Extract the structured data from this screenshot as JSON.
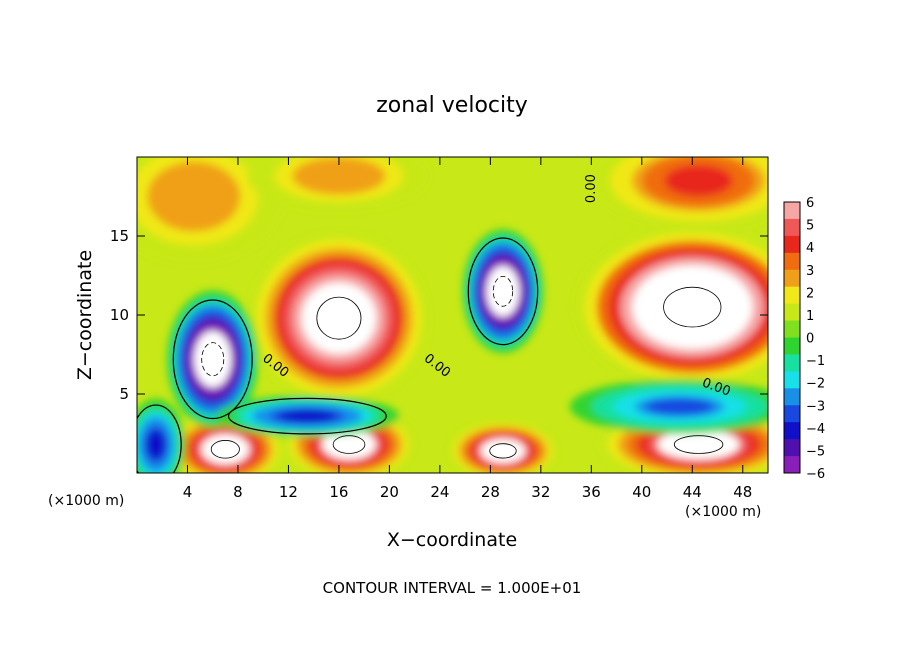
{
  "chart_data": {
    "type": "heatmap",
    "title": "zonal velocity",
    "xlabel": "X−coordinate",
    "ylabel": "Z−coordinate",
    "x_unit_left": "(×1000 m)",
    "x_unit_right": "(×1000 m)",
    "footer": "CONTOUR INTERVAL = 1.000E+01",
    "xlim": [
      0,
      50
    ],
    "ylim": [
      0,
      20
    ],
    "x_ticks": [
      4,
      8,
      12,
      16,
      20,
      24,
      28,
      32,
      36,
      40,
      44,
      48
    ],
    "y_ticks": [
      5,
      10,
      15
    ],
    "colorbar": {
      "ticks": [
        6,
        5,
        4,
        3,
        2,
        1,
        0,
        -1,
        -2,
        -3,
        -4,
        -5,
        -6
      ],
      "tick_labels": [
        "6",
        "5",
        "4",
        "3",
        "2",
        "1",
        "0",
        "−1",
        "−2",
        "−3",
        "−4",
        "−5",
        "−6"
      ],
      "colors": [
        "#f7a6a6",
        "#f05858",
        "#e8281c",
        "#f06c10",
        "#f0a018",
        "#f0e818",
        "#c8e818",
        "#80e020",
        "#30d430",
        "#18e0a0",
        "#18e0e8",
        "#1890e8",
        "#1848e0",
        "#1010c8",
        "#5010b0",
        "#8a1eb8"
      ]
    },
    "contour_labels": [
      {
        "text": "0.00",
        "x": 10.8,
        "z": 6.6,
        "rotate": 38
      },
      {
        "text": "0.00",
        "x": 23.6,
        "z": 6.6,
        "rotate": 38
      },
      {
        "text": "0.00",
        "x": 36.3,
        "z": 18.0,
        "rotate": -90
      },
      {
        "text": "0.00",
        "x": 45.8,
        "z": 5.2,
        "rotate": 20
      }
    ],
    "field_features": [
      {
        "sign": "positive",
        "x": 16.0,
        "z": 9.8,
        "rx": 5.0,
        "rz": 3.8,
        "value": 8
      },
      {
        "sign": "positive",
        "x": 44.0,
        "z": 10.5,
        "rx": 6.5,
        "rz": 3.6,
        "value": 9
      },
      {
        "sign": "positive",
        "x": 7.0,
        "z": 1.5,
        "rx": 3.2,
        "rz": 1.6,
        "value": 7
      },
      {
        "sign": "positive",
        "x": 16.8,
        "z": 1.8,
        "rx": 3.6,
        "rz": 1.6,
        "value": 7
      },
      {
        "sign": "positive",
        "x": 29.0,
        "z": 1.4,
        "rx": 3.0,
        "rz": 1.3,
        "value": 7
      },
      {
        "sign": "positive",
        "x": 44.5,
        "z": 1.8,
        "rx": 5.5,
        "rz": 1.6,
        "value": 7
      },
      {
        "sign": "positive",
        "x": 4.5,
        "z": 17.5,
        "rx": 5.0,
        "rz": 3.0,
        "value": 3
      },
      {
        "sign": "positive",
        "x": 16.0,
        "z": 18.8,
        "rx": 5.0,
        "rz": 1.6,
        "value": 3
      },
      {
        "sign": "positive",
        "x": 44.5,
        "z": 18.5,
        "rx": 6.0,
        "rz": 2.2,
        "value": 4
      },
      {
        "sign": "negative",
        "x": 29.0,
        "z": 11.5,
        "rx": 2.2,
        "rz": 2.7,
        "value": -8
      },
      {
        "sign": "negative",
        "x": 6.0,
        "z": 7.2,
        "rx": 2.5,
        "rz": 3.0,
        "value": -8
      },
      {
        "sign": "negative",
        "x": 13.5,
        "z": 3.6,
        "rx": 5.0,
        "rz": 0.9,
        "value": -4
      },
      {
        "sign": "negative",
        "x": 43.0,
        "z": 4.2,
        "rx": 6.0,
        "rz": 1.2,
        "value": -3
      },
      {
        "sign": "negative",
        "x": 1.5,
        "z": 1.8,
        "rx": 1.6,
        "rz": 2.0,
        "value": -4
      }
    ]
  }
}
